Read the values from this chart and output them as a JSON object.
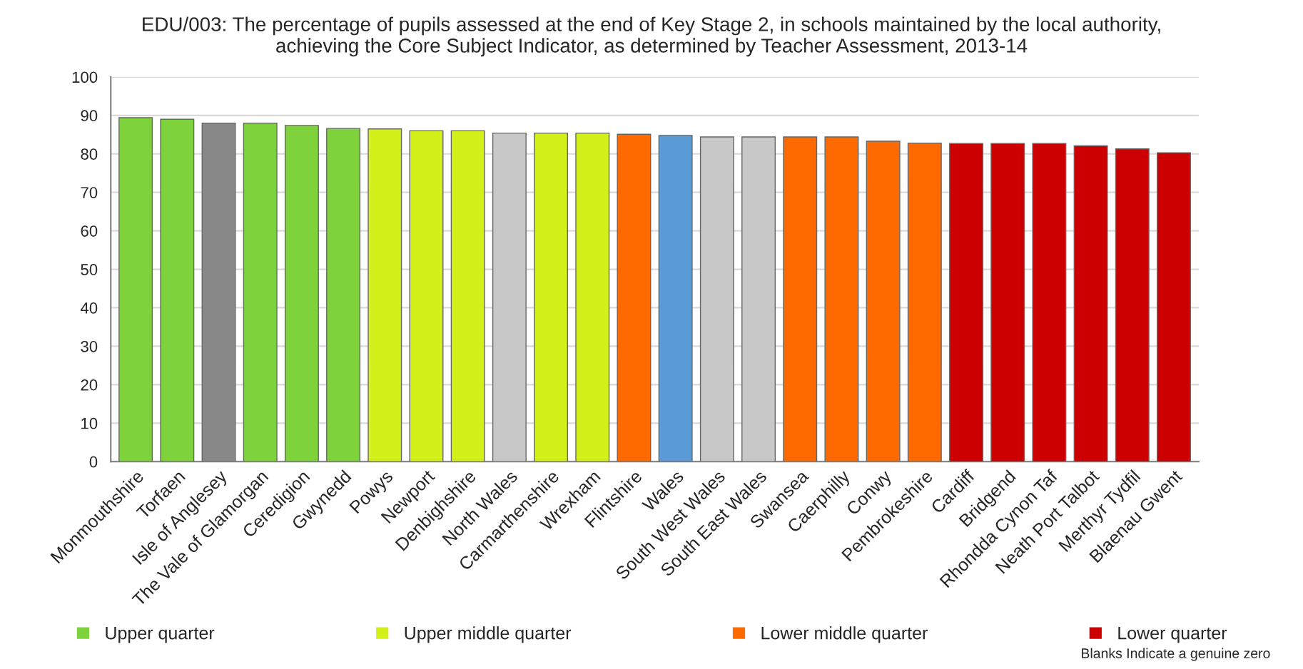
{
  "chart_data": {
    "type": "bar",
    "title": "EDU/003: The percentage of pupils assessed at the end of Key Stage 2, in schools maintained by the local authority,\nachieving the Core Subject Indicator, as determined by Teacher Assessment, 2013-14",
    "categories": [
      "Monmouthshire",
      "Torfaen",
      "Isle of Anglesey",
      "The Vale of Glamorgan",
      "Ceredigion",
      "Gwynedd",
      "Powys",
      "Newport",
      "Denbighshire",
      "North Wales",
      "Carmarthenshire",
      "Wrexham",
      "Flintshire",
      "Wales",
      "South West Wales",
      "South East Wales",
      "Swansea",
      "Caerphilly",
      "Conwy",
      "Pembrokeshire",
      "Cardiff",
      "Bridgend",
      "Rhondda Cynon Taf",
      "Neath Port Talbot",
      "Merthyr Tydfil",
      "Blaenau Gwent"
    ],
    "series": [
      {
        "name": "Upper quarter",
        "color": "#7ed23b",
        "values": [
          89.4,
          89.0,
          null,
          88.0,
          87.4,
          86.6,
          null,
          null,
          null,
          null,
          null,
          null,
          null,
          null,
          null,
          null,
          null,
          null,
          null,
          null,
          null,
          null,
          null,
          null,
          null,
          null
        ]
      },
      {
        "name": "Upper middle quarter",
        "color": "#d4f01a",
        "values": [
          null,
          null,
          null,
          null,
          null,
          null,
          86.5,
          86.0,
          86.0,
          null,
          85.4,
          85.4,
          null,
          null,
          null,
          null,
          null,
          null,
          null,
          null,
          null,
          null,
          null,
          null,
          null,
          null
        ]
      },
      {
        "name": "Lower middle quarter",
        "color": "#ff6a00",
        "values": [
          null,
          null,
          null,
          null,
          null,
          null,
          null,
          null,
          null,
          null,
          null,
          null,
          85.1,
          null,
          null,
          null,
          84.4,
          84.4,
          83.3,
          82.8,
          null,
          null,
          null,
          null,
          null,
          null
        ]
      },
      {
        "name": "Lower quarter",
        "color": "#cc0000",
        "values": [
          null,
          null,
          null,
          null,
          null,
          null,
          null,
          null,
          null,
          null,
          null,
          null,
          null,
          null,
          null,
          null,
          null,
          null,
          null,
          null,
          82.7,
          82.7,
          82.7,
          82.1,
          81.3,
          80.3
        ]
      },
      {
        "colors": [
          null,
          null,
          "#888888",
          null,
          null,
          null,
          null,
          null,
          null,
          "#c8c8c8",
          null,
          null,
          null,
          "#5b9bd5",
          "#c8c8c8",
          "#c8c8c8",
          null,
          null,
          null,
          null,
          null,
          null,
          null,
          null,
          null,
          null
        ],
        "values": [
          null,
          null,
          88.0,
          null,
          null,
          null,
          null,
          null,
          null,
          85.4,
          null,
          null,
          null,
          84.8,
          84.4,
          84.4,
          null,
          null,
          null,
          null,
          null,
          null,
          null,
          null,
          null,
          null
        ]
      }
    ],
    "ylim": [
      0,
      100
    ],
    "yticks": [
      0,
      10,
      20,
      30,
      40,
      50,
      60,
      70,
      80,
      90,
      100
    ],
    "grid": "y",
    "legend": "bottom",
    "annotations": [
      "Blanks Indicate a genuine zero"
    ]
  }
}
